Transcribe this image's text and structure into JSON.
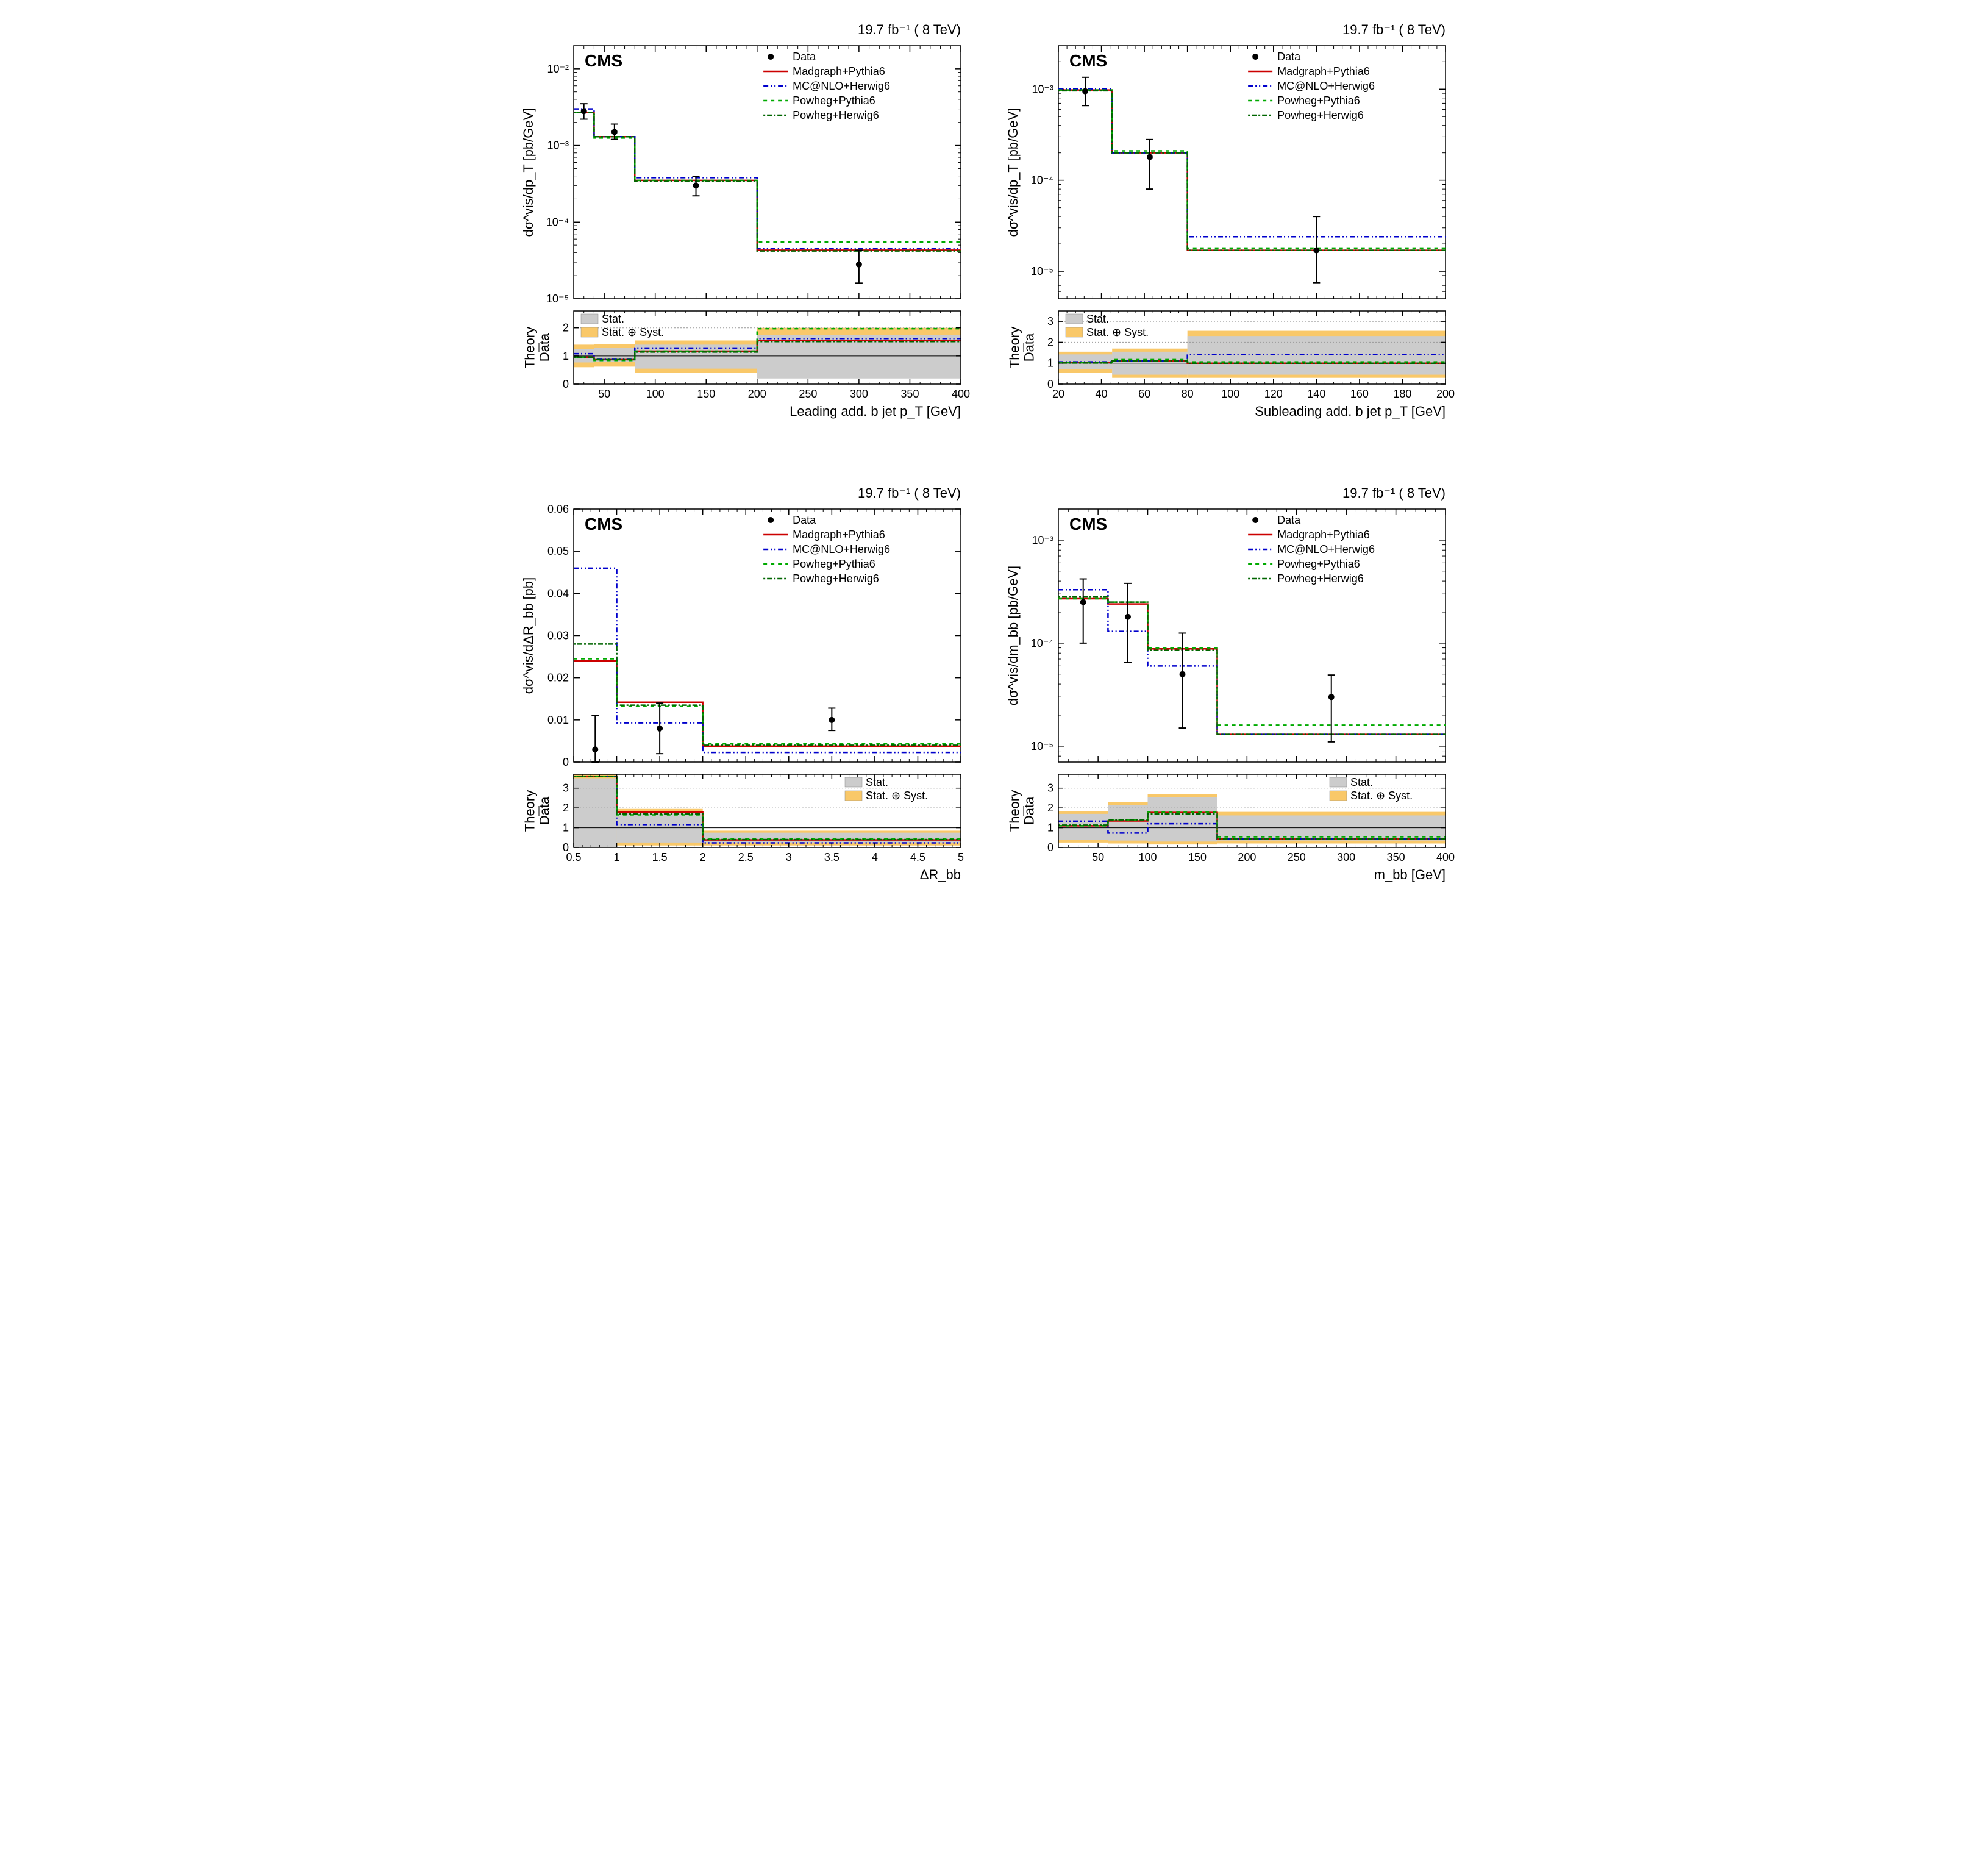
{
  "meta": {
    "lumi_label": "19.7 fb⁻¹ ( 8 TeV)",
    "cms_label": "CMS",
    "legend_series": [
      {
        "label": "Data",
        "color": "#000000",
        "kind": "marker"
      },
      {
        "label": "Madgraph+Pythia6",
        "color": "#cc0000",
        "kind": "line",
        "dash": ""
      },
      {
        "label": "MC@NLO+Herwig6",
        "color": "#0000cc",
        "kind": "line",
        "dash": "8,4,2,4,2,4"
      },
      {
        "label": "Powheg+Pythia6",
        "color": "#00aa00",
        "kind": "line",
        "dash": "6,6"
      },
      {
        "label": "Powheg+Herwig6",
        "color": "#006600",
        "kind": "line",
        "dash": "3,3,8,3"
      }
    ],
    "ratio_legend": [
      {
        "label": "Stat.",
        "fill": "#cccccc"
      },
      {
        "label": "Stat. ⊕ Syst.",
        "fill": "#f9c869"
      }
    ],
    "ratio_ylabel": "Theory / Data",
    "line_width": 2.5,
    "marker_radius": 5,
    "tick_fontsize": 18,
    "label_fontsize": 22,
    "title_fontsize": 22,
    "cms_fontsize": 28,
    "legend_fontsize": 18
  },
  "panels": [
    {
      "id": "A",
      "xlabel": "Leading add. b jet p_T [GeV]",
      "ylabel": "dσ^vis/dp_T [pb/GeV]",
      "xaxis": {
        "min": 20,
        "max": 400,
        "ticks": [
          50,
          100,
          150,
          200,
          250,
          300,
          350,
          400
        ],
        "log": false
      },
      "yaxis": {
        "min": 1e-05,
        "max": 0.02,
        "ticks": [
          1e-05,
          0.0001,
          0.001,
          0.01
        ],
        "tickLabels": [
          "10⁻⁵",
          "10⁻⁴",
          "10⁻³",
          "10⁻²"
        ],
        "log": true
      },
      "bins": [
        20,
        40,
        80,
        200,
        400
      ],
      "data": {
        "x": [
          30,
          60,
          140,
          300
        ],
        "y": [
          0.0028,
          0.0015,
          0.0003,
          2.8e-05
        ],
        "stat_lo": [
          0.0022,
          0.0012,
          0.00022,
          1.6e-05
        ],
        "stat_hi": [
          0.0035,
          0.0019,
          0.00039,
          4.3e-05
        ]
      },
      "mc": {
        "madgraph": [
          0.0027,
          0.0013,
          0.00035,
          4.3e-05
        ],
        "mcnlo": [
          0.003,
          0.0013,
          0.00038,
          4.5e-05
        ],
        "powpy": [
          0.0027,
          0.00125,
          0.00035,
          5.5e-05
        ],
        "powhe": [
          0.0027,
          0.0013,
          0.00034,
          4.2e-05
        ]
      },
      "ratio": {
        "ymin": 0,
        "ymax": 2.6,
        "yticks": [
          0,
          1,
          2
        ],
        "stat_lo": [
          0.77,
          0.78,
          0.55,
          0.2
        ],
        "stat_hi": [
          1.25,
          1.28,
          1.4,
          1.75
        ],
        "syst_lo": [
          0.6,
          0.62,
          0.4,
          0.35
        ],
        "syst_hi": [
          1.4,
          1.42,
          1.55,
          2.0
        ],
        "madgraph": [
          0.96,
          0.87,
          1.17,
          1.55
        ],
        "mcnlo": [
          1.08,
          0.88,
          1.28,
          1.62
        ],
        "powpy": [
          0.96,
          0.84,
          1.17,
          1.97
        ],
        "powhe": [
          0.96,
          0.87,
          1.14,
          1.51
        ],
        "legend_pos": "tl"
      }
    },
    {
      "id": "B",
      "xlabel": "Subleading add. b jet p_T [GeV]",
      "ylabel": "dσ^vis/dp_T [pb/GeV]",
      "xaxis": {
        "min": 20,
        "max": 200,
        "ticks": [
          20,
          40,
          60,
          80,
          100,
          120,
          140,
          160,
          180,
          200
        ],
        "log": false
      },
      "yaxis": {
        "min": 5e-06,
        "max": 0.003,
        "ticks": [
          1e-05,
          0.0001,
          0.001
        ],
        "tickLabels": [
          "10⁻⁵",
          "10⁻⁴",
          "10⁻³"
        ],
        "log": true
      },
      "bins": [
        20,
        45,
        80,
        200
      ],
      "data": {
        "x": [
          32.5,
          62.5,
          140
        ],
        "y": [
          0.00095,
          0.00018,
          1.7e-05
        ],
        "stat_lo": [
          0.00066,
          8e-05,
          7.5e-06
        ],
        "stat_hi": [
          0.00135,
          0.00028,
          4e-05
        ]
      },
      "mc": {
        "madgraph": [
          0.00098,
          0.0002,
          1.7e-05
        ],
        "mcnlo": [
          0.001,
          0.0002,
          2.4e-05
        ],
        "powpy": [
          0.00098,
          0.00021,
          1.8e-05
        ],
        "powhe": [
          0.00096,
          0.0002,
          1.7e-05
        ]
      },
      "ratio": {
        "ymin": 0,
        "ymax": 3.5,
        "yticks": [
          0,
          1,
          2,
          3
        ],
        "stat_lo": [
          0.7,
          0.45,
          0.45
        ],
        "stat_hi": [
          1.42,
          1.55,
          2.3
        ],
        "syst_lo": [
          0.55,
          0.3,
          0.3
        ],
        "syst_hi": [
          1.55,
          1.7,
          2.55
        ],
        "madgraph": [
          1.03,
          1.11,
          1.0
        ],
        "mcnlo": [
          1.06,
          1.11,
          1.42
        ],
        "powpy": [
          1.03,
          1.17,
          1.06
        ],
        "powhe": [
          1.01,
          1.11,
          1.0
        ],
        "legend_pos": "tl"
      }
    },
    {
      "id": "C",
      "xlabel": "ΔR_bb",
      "ylabel": "dσ^vis/dΔR_bb [pb]",
      "xaxis": {
        "min": 0.5,
        "max": 5,
        "ticks": [
          0.5,
          1,
          1.5,
          2,
          2.5,
          3,
          3.5,
          4,
          4.5,
          5
        ],
        "log": false
      },
      "yaxis": {
        "min": 0,
        "max": 0.06,
        "ticks": [
          0,
          0.01,
          0.02,
          0.03,
          0.04,
          0.05,
          0.06
        ],
        "tickLabels": [
          "0",
          "0.01",
          "0.02",
          "0.03",
          "0.04",
          "0.05",
          "0.06"
        ],
        "log": false
      },
      "bins": [
        0.5,
        1.0,
        2.0,
        5.0
      ],
      "data": {
        "x": [
          0.75,
          1.5,
          3.5
        ],
        "y": [
          0.003,
          0.008,
          0.01
        ],
        "stat_lo": [
          -0.005,
          0.002,
          0.0075
        ],
        "stat_hi": [
          0.011,
          0.014,
          0.0128
        ]
      },
      "mc": {
        "madgraph": [
          0.024,
          0.0142,
          0.0038
        ],
        "mcnlo": [
          0.046,
          0.0093,
          0.0023
        ],
        "powpy": [
          0.0245,
          0.0132,
          0.0043
        ],
        "powhe": [
          0.028,
          0.0135,
          0.004
        ]
      },
      "ratio": {
        "ymin": 0,
        "ymax": 3.7,
        "yticks": [
          0,
          1,
          2,
          3
        ],
        "stat_lo": [
          0.0,
          0.25,
          0.25
        ],
        "stat_hi": [
          3.5,
          1.75,
          0.75
        ],
        "syst_lo": [
          0.0,
          0.1,
          0.1
        ],
        "syst_hi": [
          3.7,
          1.95,
          0.85
        ],
        "madgraph": [
          3.6,
          1.78,
          0.38
        ],
        "mcnlo": [
          3.6,
          1.16,
          0.23
        ],
        "powpy": [
          3.6,
          1.65,
          0.43
        ],
        "powhe": [
          3.6,
          1.69,
          0.4
        ],
        "legend_pos": "tr"
      }
    },
    {
      "id": "D",
      "xlabel": "m_bb [GeV]",
      "ylabel": "dσ^vis/dm_bb [pb/GeV]",
      "xaxis": {
        "min": 10,
        "max": 400,
        "ticks": [
          50,
          100,
          150,
          200,
          250,
          300,
          350,
          400
        ],
        "log": false
      },
      "yaxis": {
        "min": 7e-06,
        "max": 0.002,
        "ticks": [
          1e-05,
          0.0001,
          0.001
        ],
        "tickLabels": [
          "10⁻⁵",
          "10⁻⁴",
          "10⁻³"
        ],
        "log": true
      },
      "bins": [
        10,
        60,
        100,
        170,
        400
      ],
      "data": {
        "x": [
          35,
          80,
          135,
          285
        ],
        "y": [
          0.00025,
          0.00018,
          5e-05,
          3e-05
        ],
        "stat_lo": [
          0.0001,
          6.5e-05,
          1.5e-05,
          1.1e-05
        ],
        "stat_hi": [
          0.00042,
          0.00038,
          0.000125,
          4.9e-05
        ]
      },
      "mc": {
        "madgraph": [
          0.00027,
          0.00024,
          8.8e-05,
          1.3e-05
        ],
        "mcnlo": [
          0.00033,
          0.00013,
          6e-05,
          1.3e-05
        ],
        "powpy": [
          0.00027,
          0.00025,
          9e-05,
          1.6e-05
        ],
        "powhe": [
          0.00028,
          0.00025,
          8.5e-05,
          1.3e-05
        ]
      },
      "ratio": {
        "ymin": 0,
        "ymax": 3.7,
        "yticks": [
          0,
          1,
          2,
          3
        ],
        "stat_lo": [
          0.4,
          0.35,
          0.3,
          0.35
        ],
        "stat_hi": [
          1.7,
          2.15,
          2.55,
          1.62
        ],
        "syst_lo": [
          0.25,
          0.2,
          0.15,
          0.2
        ],
        "syst_hi": [
          1.85,
          2.3,
          2.7,
          1.8
        ],
        "madgraph": [
          1.1,
          1.34,
          1.77,
          0.44
        ],
        "mcnlo": [
          1.33,
          0.73,
          1.2,
          0.44
        ],
        "powpy": [
          1.1,
          1.4,
          1.8,
          0.54
        ],
        "powhe": [
          1.13,
          1.4,
          1.7,
          0.44
        ],
        "legend_pos": "tr"
      }
    }
  ]
}
